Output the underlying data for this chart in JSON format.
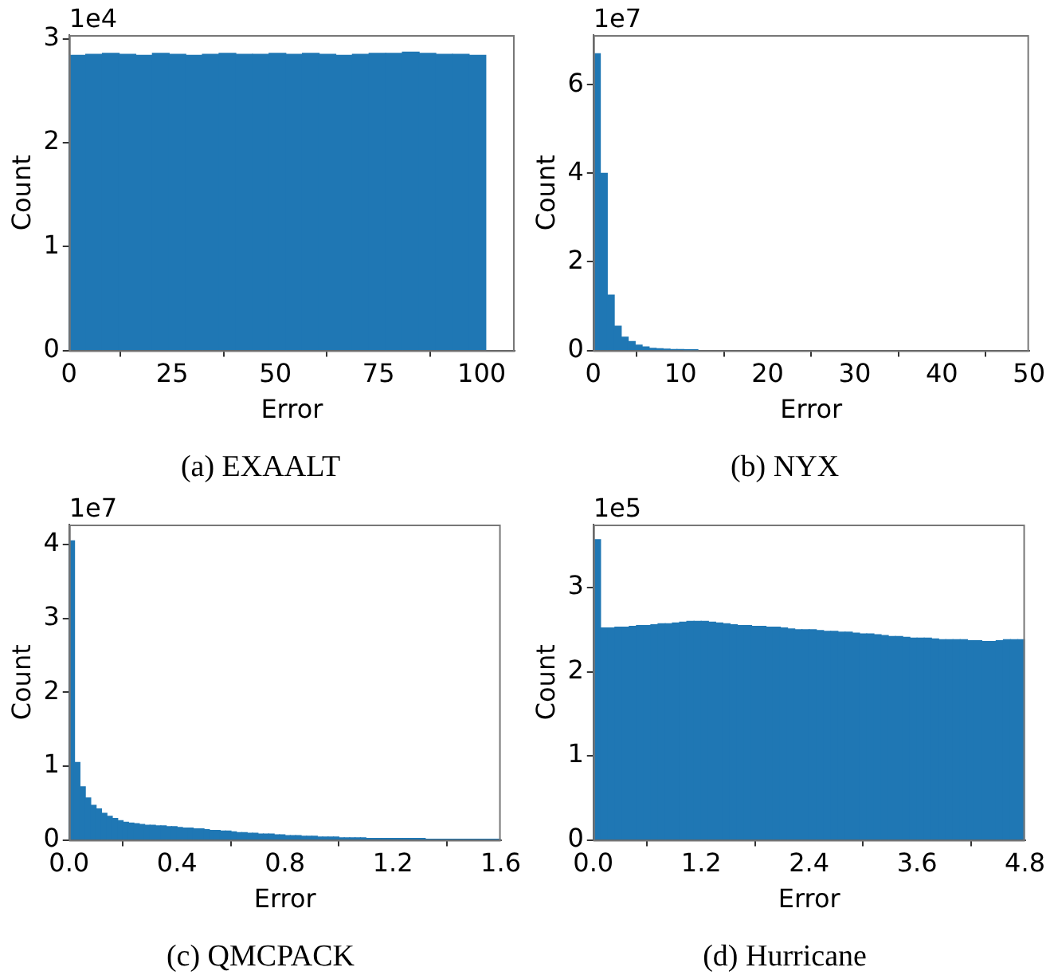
{
  "chart_data": [
    {
      "type": "histogram",
      "title": "(a) EXAALT",
      "xlabel": "Error",
      "ylabel": "Count",
      "annotations": [
        "1e4"
      ],
      "color": "#1f77b4",
      "bins": [
        0,
        4.04,
        8.08,
        12.12,
        16.16,
        20.2,
        24.24,
        28.28,
        32.32,
        36.36,
        40.4,
        44.44,
        48.48,
        52.52,
        56.56,
        60.6,
        64.64,
        68.68,
        72.72,
        76.76,
        80.8,
        84.84,
        88.88,
        92.92,
        96.96,
        101
      ],
      "values": [
        2.84,
        2.85,
        2.86,
        2.85,
        2.84,
        2.86,
        2.85,
        2.84,
        2.85,
        2.86,
        2.85,
        2.85,
        2.86,
        2.85,
        2.86,
        2.85,
        2.84,
        2.85,
        2.86,
        2.86,
        2.87,
        2.86,
        2.85,
        2.85,
        2.84
      ],
      "xlim": [
        0,
        108
      ],
      "xticks": [
        0,
        25,
        50,
        75,
        100
      ],
      "ylim": [
        0,
        3.035
      ],
      "yticks": [
        0,
        1,
        2,
        3
      ]
    },
    {
      "type": "histogram",
      "title": "(b) NYX",
      "xlabel": "Error",
      "ylabel": "Count",
      "annotations": [
        "1e7"
      ],
      "color": "#1f77b4",
      "bins": [
        0,
        0.8,
        1.6,
        2.4,
        3.2,
        4,
        4.8,
        5.6,
        6.4,
        7.2,
        8,
        8.8,
        9.6,
        10.4,
        11.2,
        12
      ],
      "values": [
        6.7,
        4.0,
        1.25,
        0.55,
        0.3,
        0.2,
        0.12,
        0.08,
        0.05,
        0.04,
        0.03,
        0.02,
        0.02,
        0.01,
        0.01
      ],
      "xlim": [
        0,
        50
      ],
      "xticks": [
        0,
        10,
        20,
        30,
        40,
        50
      ],
      "ylim": [
        0,
        7.12
      ],
      "yticks": [
        0,
        2,
        4,
        6
      ]
    },
    {
      "type": "histogram",
      "title": "(c) QMCPACK",
      "xlabel": "Error",
      "ylabel": "Count",
      "annotations": [
        "1e7"
      ],
      "color": "#1f77b4",
      "bins": [
        0,
        0.02,
        0.04,
        0.06,
        0.08,
        0.1,
        0.12,
        0.14,
        0.16,
        0.18,
        0.2,
        0.22,
        0.24,
        0.26,
        0.28,
        0.3,
        0.32,
        0.34,
        0.36,
        0.38,
        0.4,
        0.42,
        0.44,
        0.46,
        0.48,
        0.5,
        0.52,
        0.54,
        0.56,
        0.58,
        0.6,
        0.62,
        0.64,
        0.66,
        0.68,
        0.7,
        0.72,
        0.74,
        0.76,
        0.78,
        0.8,
        0.82,
        0.84,
        0.86,
        0.88,
        0.9,
        0.92,
        0.94,
        0.96,
        0.98,
        1,
        1.02,
        1.04,
        1.06,
        1.08,
        1.1,
        1.12,
        1.14,
        1.16,
        1.18,
        1.2,
        1.22,
        1.24,
        1.26,
        1.28,
        1.3,
        1.32,
        1.34,
        1.36,
        1.38,
        1.4,
        1.42,
        1.44,
        1.46,
        1.48,
        1.5,
        1.52,
        1.54,
        1.56,
        1.58,
        1.6
      ],
      "values": [
        4.05,
        1.05,
        0.72,
        0.57,
        0.47,
        0.42,
        0.36,
        0.32,
        0.29,
        0.26,
        0.24,
        0.23,
        0.22,
        0.21,
        0.2,
        0.2,
        0.19,
        0.19,
        0.18,
        0.18,
        0.17,
        0.16,
        0.16,
        0.15,
        0.15,
        0.14,
        0.13,
        0.13,
        0.12,
        0.12,
        0.11,
        0.1,
        0.1,
        0.09,
        0.09,
        0.08,
        0.08,
        0.08,
        0.07,
        0.07,
        0.06,
        0.06,
        0.06,
        0.05,
        0.05,
        0.05,
        0.04,
        0.04,
        0.04,
        0.04,
        0.03,
        0.03,
        0.03,
        0.03,
        0.03,
        0.02,
        0.02,
        0.02,
        0.02,
        0.02,
        0.02,
        0.02,
        0.02,
        0.02,
        0.02,
        0.02,
        0.01,
        0.01,
        0.01,
        0.01,
        0.01,
        0.01,
        0.01,
        0.01,
        0.01,
        0.01,
        0.01,
        0.01,
        0.01,
        0.01
      ],
      "xlim": [
        0,
        1.6
      ],
      "xticks": [
        {
          "value": 0,
          "label": "0.0"
        },
        0.4,
        0.8,
        1.2,
        1.6
      ],
      "ylim": [
        0,
        4.27
      ],
      "yticks": [
        0,
        1,
        2,
        3,
        4
      ]
    },
    {
      "type": "histogram",
      "title": "(d) Hurricane",
      "xlabel": "Error",
      "ylabel": "Count",
      "annotations": [
        "1e5"
      ],
      "color": "#1f77b4",
      "bins": [
        0,
        0.08,
        0.16,
        0.24,
        0.32,
        0.4,
        0.48,
        0.56,
        0.64,
        0.72,
        0.8,
        0.88,
        0.96,
        1.04,
        1.12,
        1.2,
        1.28,
        1.36,
        1.44,
        1.52,
        1.6,
        1.68,
        1.76,
        1.84,
        1.92,
        2,
        2.08,
        2.16,
        2.24,
        2.32,
        2.4,
        2.48,
        2.56,
        2.64,
        2.72,
        2.8,
        2.88,
        2.96,
        3.04,
        3.12,
        3.2,
        3.28,
        3.36,
        3.44,
        3.52,
        3.6,
        3.68,
        3.76,
        3.84,
        3.92,
        4,
        4.08,
        4.16,
        4.24,
        4.32,
        4.4,
        4.48,
        4.56,
        4.64,
        4.72,
        4.8
      ],
      "values": [
        3.57,
        2.52,
        2.52,
        2.53,
        2.53,
        2.54,
        2.55,
        2.55,
        2.56,
        2.57,
        2.57,
        2.58,
        2.59,
        2.6,
        2.6,
        2.6,
        2.59,
        2.58,
        2.57,
        2.56,
        2.55,
        2.55,
        2.54,
        2.54,
        2.53,
        2.53,
        2.52,
        2.51,
        2.5,
        2.5,
        2.5,
        2.49,
        2.48,
        2.48,
        2.47,
        2.47,
        2.46,
        2.45,
        2.45,
        2.44,
        2.43,
        2.42,
        2.42,
        2.41,
        2.4,
        2.4,
        2.4,
        2.39,
        2.38,
        2.38,
        2.38,
        2.38,
        2.37,
        2.37,
        2.36,
        2.36,
        2.37,
        2.38,
        2.38,
        2.38
      ],
      "xlim": [
        0,
        4.8
      ],
      "xticks": [
        {
          "value": 0,
          "label": "0.0"
        },
        1.2,
        2.4,
        3.6,
        4.8
      ],
      "ylim": [
        0,
        3.75
      ],
      "yticks": [
        0,
        1,
        2,
        3
      ]
    }
  ]
}
